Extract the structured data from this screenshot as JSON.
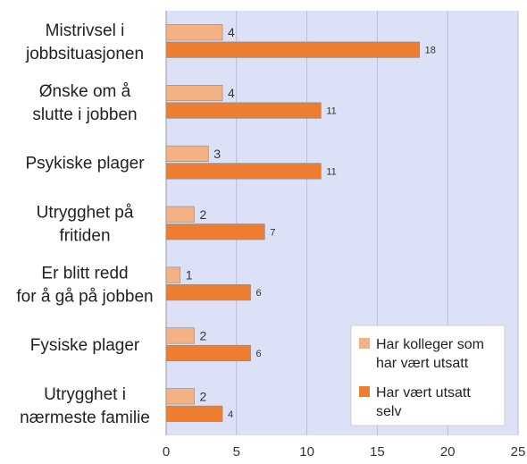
{
  "chart_data": {
    "type": "bar",
    "orientation": "horizontal",
    "categories": [
      [
        "Mistrivsel i",
        "jobbsituasjonen"
      ],
      [
        "Ønske om å",
        "slutte i jobben"
      ],
      [
        "Psykiske plager"
      ],
      [
        "Utrygghet på",
        "fritiden"
      ],
      [
        "Er blitt redd",
        "for å gå på jobben"
      ],
      [
        "Fysiske plager"
      ],
      [
        "Utrygghet i",
        "nærmeste familie"
      ]
    ],
    "series": [
      {
        "name": [
          "Har kolleger som",
          "har vært utsatt"
        ],
        "color": "#F4B183",
        "values": [
          4,
          4,
          3,
          2,
          1,
          2,
          2
        ]
      },
      {
        "name": [
          "Har vært utsatt",
          "selv"
        ],
        "color": "#ED7D31",
        "values": [
          18,
          11,
          11,
          7,
          6,
          6,
          4
        ]
      }
    ],
    "xlim": [
      0,
      25
    ],
    "xticks": [
      0,
      5,
      10,
      15,
      20,
      25
    ],
    "plot_background": "#DDE1F7",
    "gridlines": true,
    "legend_position": "bottom-right"
  }
}
